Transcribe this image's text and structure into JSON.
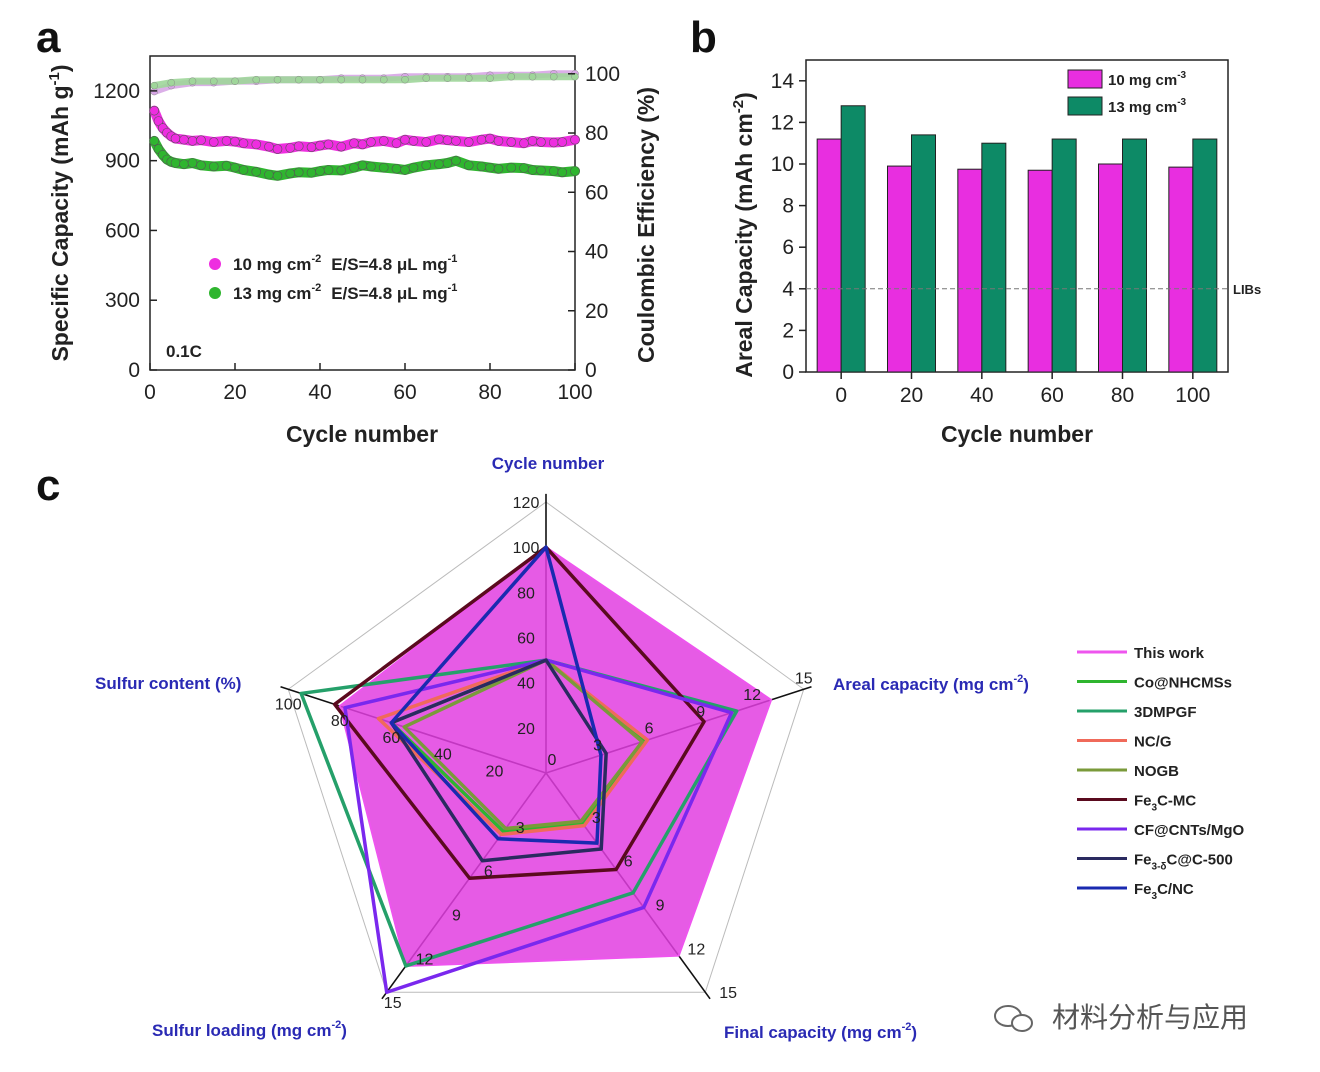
{
  "figure_labels": {
    "a": "a",
    "b": "b",
    "c": "c"
  },
  "watermark": {
    "text": "材料分析与应用",
    "icon": "wechat-icon"
  },
  "chart_data": [
    {
      "type": "scatter",
      "panel": "a",
      "xlabel": "Cycle number",
      "ylabel": "Specific Capacity (mAh g-1)",
      "y2label": "Coulombic Efficiency (%)",
      "xlim": [
        0,
        100
      ],
      "ylim": [
        0,
        1350
      ],
      "y2lim": [
        0,
        106
      ],
      "xticks": [
        "0",
        "20",
        "40",
        "60",
        "80",
        "100"
      ],
      "yticks": [
        "0",
        "300",
        "600",
        "900",
        "1200"
      ],
      "y2ticks": [
        "0",
        "20",
        "40",
        "60",
        "80",
        "100"
      ],
      "annotation": "0.1C",
      "legend_position": "center-left",
      "colors": {
        "10": "#ee2ee0",
        "13": "#2fb52f",
        "ce_10": "#d7a6e6",
        "ce_13": "#9fd69a"
      },
      "series": [
        {
          "name": "10 mg cm-2 E/S=4.8 μL mg-1",
          "legend_main": "10 mg cm",
          "legend_sup": "-2",
          "legend_es": "E/S=4.8 μL mg",
          "legend_es_sup": "-1",
          "x": [
            1,
            2,
            3,
            4,
            5,
            6,
            8,
            10,
            12,
            15,
            18,
            20,
            22,
            25,
            28,
            30,
            33,
            35,
            38,
            40,
            42,
            45,
            48,
            50,
            52,
            55,
            58,
            60,
            62,
            65,
            68,
            70,
            72,
            75,
            78,
            80,
            82,
            85,
            88,
            90,
            92,
            95,
            97,
            100
          ],
          "values": [
            1115,
            1070,
            1040,
            1020,
            1005,
            995,
            990,
            985,
            988,
            980,
            985,
            982,
            975,
            970,
            960,
            950,
            955,
            962,
            958,
            965,
            970,
            960,
            975,
            970,
            980,
            985,
            975,
            990,
            985,
            980,
            992,
            988,
            985,
            980,
            990,
            995,
            985,
            980,
            975,
            985,
            980,
            978,
            980,
            990
          ]
        },
        {
          "name": "13 mg cm-2 E/S=4.8 μL mg-1",
          "legend_main": "13 mg cm",
          "legend_sup": "-2",
          "legend_es": "E/S=4.8 μL mg",
          "legend_es_sup": "-1",
          "x": [
            1,
            2,
            3,
            4,
            5,
            6,
            8,
            10,
            12,
            15,
            18,
            20,
            22,
            25,
            28,
            30,
            33,
            35,
            38,
            40,
            42,
            45,
            48,
            50,
            52,
            55,
            58,
            60,
            62,
            65,
            68,
            70,
            72,
            75,
            78,
            80,
            82,
            85,
            88,
            90,
            92,
            95,
            97,
            100
          ],
          "values": [
            985,
            950,
            925,
            905,
            895,
            890,
            885,
            890,
            880,
            875,
            878,
            870,
            860,
            852,
            840,
            835,
            845,
            850,
            848,
            855,
            860,
            858,
            870,
            880,
            875,
            870,
            865,
            860,
            870,
            880,
            885,
            890,
            900,
            880,
            875,
            870,
            865,
            870,
            868,
            860,
            858,
            855,
            850,
            855
          ]
        },
        {
          "name": "CE 10 mg cm-2",
          "axis": "right",
          "x": [
            1,
            5,
            10,
            15,
            20,
            25,
            30,
            35,
            40,
            45,
            50,
            55,
            60,
            65,
            70,
            75,
            80,
            85,
            90,
            95,
            100
          ],
          "values": [
            94,
            96,
            97,
            97,
            97.5,
            97.5,
            98,
            98,
            98,
            98.5,
            98.5,
            98.5,
            99,
            99,
            99,
            99,
            99.5,
            99.5,
            99.5,
            100,
            100
          ]
        },
        {
          "name": "CE 13 mg cm-2",
          "axis": "right",
          "x": [
            1,
            5,
            10,
            15,
            20,
            25,
            30,
            35,
            40,
            45,
            50,
            55,
            60,
            65,
            70,
            75,
            80,
            85,
            90,
            95,
            100
          ],
          "values": [
            96,
            97,
            97.5,
            97.5,
            97.5,
            98,
            98,
            98,
            98,
            98,
            98,
            98,
            98,
            98.5,
            98.5,
            98.5,
            98.5,
            99,
            99,
            99,
            99
          ]
        }
      ]
    },
    {
      "type": "bar",
      "panel": "b",
      "xlabel": "Cycle number",
      "ylabel": "Areal Capacity (mAh cm-2)",
      "ylim": [
        0,
        15
      ],
      "yticks": [
        "0",
        "2",
        "4",
        "6",
        "8",
        "10",
        "12",
        "14"
      ],
      "categories": [
        "0",
        "20",
        "40",
        "60",
        "80",
        "100"
      ],
      "reference_line": {
        "value": 4,
        "label": "LIBs"
      },
      "legend_position": "top-right",
      "series": [
        {
          "name": "10 mg cm-3",
          "legend_main": "10 mg cm",
          "legend_sup": "-3",
          "color": "#e82ee0",
          "values": [
            11.2,
            9.9,
            9.75,
            9.7,
            10.0,
            9.85
          ]
        },
        {
          "name": "13 mg cm-3",
          "legend_main": "13 mg cm",
          "legend_sup": "-3",
          "color": "#0d8a66",
          "values": [
            12.8,
            11.4,
            11.0,
            11.2,
            11.2,
            11.2
          ]
        }
      ]
    },
    {
      "type": "radar",
      "panel": "c",
      "axes": [
        {
          "name": "Cycle number",
          "max": 120,
          "ticks": [
            "0",
            "20",
            "40",
            "60",
            "80",
            "100",
            "120"
          ]
        },
        {
          "name": "Areal capacity (mg cm-2)",
          "label_main": "Areal capacity (mg cm",
          "label_sup": "-2",
          "label_end": ")",
          "max": 15,
          "ticks": [
            "0",
            "3",
            "6",
            "9",
            "12",
            "15"
          ]
        },
        {
          "name": "Final capacity (mg cm-2)",
          "label_main": "Final capacity (mg cm",
          "label_sup": "-2",
          "label_end": ")",
          "max": 15,
          "ticks": [
            "0",
            "3",
            "6",
            "9",
            "12",
            "15"
          ]
        },
        {
          "name": "Sulfur loading (mg cm-2)",
          "label_main": "Sulfur loading (mg cm",
          "label_sup": "-2",
          "label_end": ")",
          "max": 15,
          "ticks": [
            "0",
            "3",
            "6",
            "9",
            "12",
            "15"
          ]
        },
        {
          "name": "Sulfur content (%)",
          "label_main": "Sulfur content (%)",
          "label_sup": "",
          "label_end": "",
          "max": 100,
          "ticks": [
            "0",
            "20",
            "40",
            "60",
            "80",
            "100"
          ]
        }
      ],
      "series": [
        {
          "name": "This work",
          "color": "#ee55ee",
          "fill": "#e23ee0",
          "values": [
            100,
            13.1,
            12.5,
            13.2,
            80
          ]
        },
        {
          "name": "Co@NHCMSs",
          "color": "#2fb52f",
          "values": [
            50,
            5.7,
            3.5,
            4.0,
            60
          ]
        },
        {
          "name": "3DMPGF",
          "color": "#25a06a",
          "values": [
            50,
            11.1,
            8.2,
            13.2,
            95
          ]
        },
        {
          "name": "NC/G",
          "color": "#f06a5a",
          "values": [
            50,
            5.9,
            3.6,
            4.2,
            65
          ]
        },
        {
          "name": "NOGB",
          "color": "#7a9a3a",
          "values": [
            50,
            5.6,
            3.3,
            3.8,
            55
          ]
        },
        {
          "name": "Fe3C-MC",
          "color": "#5a0a1e",
          "values": [
            100,
            9.2,
            6.6,
            7.2,
            82
          ]
        },
        {
          "name": "CF@CNTs/MgO",
          "color": "#7a28ee",
          "values": [
            50,
            10.8,
            9.2,
            15.0,
            78
          ]
        },
        {
          "name": "Fe3-δC@C-500",
          "color": "#2a2a60",
          "values": [
            50,
            3.5,
            5.2,
            6.0,
            60
          ]
        },
        {
          "name": "Fe3C/NC",
          "color": "#1a2ab0",
          "values": [
            100,
            3.2,
            4.8,
            4.5,
            60
          ]
        }
      ],
      "legend": [
        {
          "main": "This work",
          "sub": "",
          "rest": ""
        },
        {
          "main": "Co@NHCMSs",
          "sub": "",
          "rest": ""
        },
        {
          "main": "3DMPGF",
          "sub": "",
          "rest": ""
        },
        {
          "main": "NC/G",
          "sub": "",
          "rest": ""
        },
        {
          "main": "NOGB",
          "sub": "",
          "rest": ""
        },
        {
          "main": "Fe",
          "sub": "3",
          "rest": "C-MC"
        },
        {
          "main": "CF@CNTs/MgO",
          "sub": "",
          "rest": ""
        },
        {
          "main": "Fe",
          "sub": "3-δ",
          "rest": "C@C-500"
        },
        {
          "main": "Fe",
          "sub": "3",
          "rest": "C/NC"
        }
      ]
    }
  ]
}
